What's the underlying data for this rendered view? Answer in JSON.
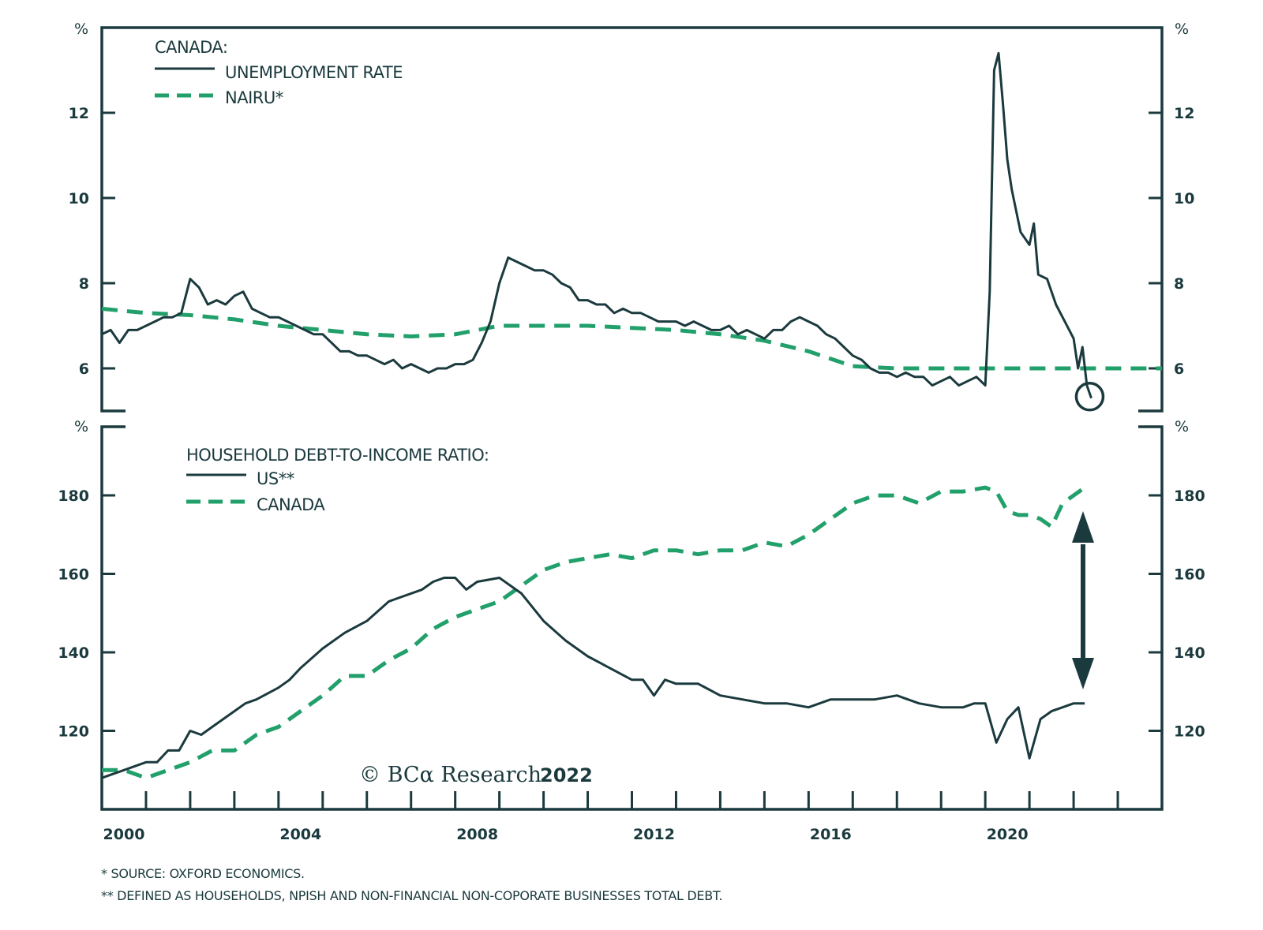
{
  "colors": {
    "dark": "#1b3a3e",
    "green": "#22a06b"
  },
  "footnotes": [
    "*  SOURCE: OXFORD ECONOMICS.",
    "** DEFINED AS HOUSEHOLDS, NPISH AND NON-FINANCIAL NON-COPORATE BUSINESSES TOTAL DEBT."
  ],
  "copyright": {
    "text": "© BCα Research",
    "year": "2022"
  },
  "chart_data": [
    {
      "type": "line",
      "panel": "top",
      "title": "CANADA:",
      "ylabel_left": "%",
      "ylabel_right": "%",
      "ylim": [
        5,
        14
      ],
      "yticks": [
        6,
        8,
        10,
        12
      ],
      "xlim": [
        2000,
        2024
      ],
      "grid": false,
      "legend_position": "top-left",
      "annotation": "circle around latest unemployment reading",
      "series": [
        {
          "name": "UNEMPLOYMENT RATE",
          "style": "solid",
          "x": [
            2000.0,
            2000.2,
            2000.4,
            2000.6,
            2000.8,
            2001.0,
            2001.2,
            2001.4,
            2001.6,
            2001.8,
            2002.0,
            2002.2,
            2002.4,
            2002.6,
            2002.8,
            2003.0,
            2003.2,
            2003.4,
            2003.6,
            2003.8,
            2004.0,
            2004.2,
            2004.4,
            2004.6,
            2004.8,
            2005.0,
            2005.2,
            2005.4,
            2005.6,
            2005.8,
            2006.0,
            2006.2,
            2006.4,
            2006.6,
            2006.8,
            2007.0,
            2007.2,
            2007.4,
            2007.6,
            2007.8,
            2008.0,
            2008.2,
            2008.4,
            2008.6,
            2008.8,
            2009.0,
            2009.2,
            2009.4,
            2009.6,
            2009.8,
            2010.0,
            2010.2,
            2010.4,
            2010.6,
            2010.8,
            2011.0,
            2011.2,
            2011.4,
            2011.6,
            2011.8,
            2012.0,
            2012.2,
            2012.4,
            2012.6,
            2012.8,
            2013.0,
            2013.2,
            2013.4,
            2013.6,
            2013.8,
            2014.0,
            2014.2,
            2014.4,
            2014.6,
            2014.8,
            2015.0,
            2015.2,
            2015.4,
            2015.6,
            2015.8,
            2016.0,
            2016.2,
            2016.4,
            2016.6,
            2016.8,
            2017.0,
            2017.2,
            2017.4,
            2017.6,
            2017.8,
            2018.0,
            2018.2,
            2018.4,
            2018.6,
            2018.8,
            2019.0,
            2019.2,
            2019.4,
            2019.6,
            2019.8,
            2020.0,
            2020.1,
            2020.2,
            2020.3,
            2020.4,
            2020.5,
            2020.6,
            2020.8,
            2021.0,
            2021.1,
            2021.2,
            2021.4,
            2021.6,
            2021.8,
            2022.0,
            2022.1,
            2022.2,
            2022.3,
            2022.4
          ],
          "values": [
            6.8,
            6.9,
            6.6,
            6.9,
            6.9,
            7.0,
            7.1,
            7.2,
            7.2,
            7.3,
            8.1,
            7.9,
            7.5,
            7.6,
            7.5,
            7.7,
            7.8,
            7.4,
            7.3,
            7.2,
            7.2,
            7.1,
            7.0,
            6.9,
            6.8,
            6.8,
            6.6,
            6.4,
            6.4,
            6.3,
            6.3,
            6.2,
            6.1,
            6.2,
            6.0,
            6.1,
            6.0,
            5.9,
            6.0,
            6.0,
            6.1,
            6.1,
            6.2,
            6.6,
            7.1,
            8.0,
            8.6,
            8.5,
            8.4,
            8.3,
            8.3,
            8.2,
            8.0,
            7.9,
            7.6,
            7.6,
            7.5,
            7.5,
            7.3,
            7.4,
            7.3,
            7.3,
            7.2,
            7.1,
            7.1,
            7.1,
            7.0,
            7.1,
            7.0,
            6.9,
            6.9,
            7.0,
            6.8,
            6.9,
            6.8,
            6.7,
            6.9,
            6.9,
            7.1,
            7.2,
            7.1,
            7.0,
            6.8,
            6.7,
            6.5,
            6.3,
            6.2,
            6.0,
            5.9,
            5.9,
            5.8,
            5.9,
            5.8,
            5.8,
            5.6,
            5.7,
            5.8,
            5.6,
            5.7,
            5.8,
            5.6,
            7.8,
            13.0,
            13.4,
            12.2,
            10.9,
            10.2,
            9.2,
            8.9,
            9.4,
            8.2,
            8.1,
            7.5,
            7.1,
            6.7,
            6.0,
            6.5,
            5.6,
            5.3
          ],
          "color": "#1b3a3e"
        },
        {
          "name": "NAIRU*",
          "style": "dashed",
          "x": [
            2000,
            2001,
            2002,
            2003,
            2004,
            2005,
            2006,
            2007,
            2008,
            2009,
            2010,
            2011,
            2012,
            2013,
            2014,
            2015,
            2016,
            2017,
            2018,
            2019,
            2020,
            2021,
            2022,
            2023,
            2024
          ],
          "values": [
            7.4,
            7.3,
            7.25,
            7.15,
            7.0,
            6.9,
            6.8,
            6.75,
            6.8,
            7.0,
            7.0,
            7.0,
            6.95,
            6.9,
            6.8,
            6.65,
            6.4,
            6.05,
            6.0,
            6.0,
            6.0,
            6.0,
            6.0,
            6.0,
            6.0
          ],
          "color": "#22a06b"
        }
      ]
    },
    {
      "type": "line",
      "panel": "bottom",
      "title": "HOUSEHOLD DEBT-TO-INCOME RATIO:",
      "ylabel_left": "%",
      "ylabel_right": "%",
      "ylim": [
        100,
        197.5
      ],
      "yticks": [
        120,
        140,
        160,
        180
      ],
      "xlim": [
        2000,
        2024
      ],
      "xticks": [
        "2000",
        "2004",
        "2008",
        "2012",
        "2016",
        "2020"
      ],
      "grid": false,
      "legend_position": "top-left",
      "annotation": "double-headed arrow marking the gap between Canada and US in 2022",
      "series": [
        {
          "name": "US**",
          "style": "solid",
          "x": [
            2000.0,
            2000.5,
            2001.0,
            2001.25,
            2001.5,
            2001.75,
            2002.0,
            2002.25,
            2002.5,
            2003.0,
            2003.25,
            2003.5,
            2004.0,
            2004.25,
            2004.5,
            2005.0,
            2005.5,
            2006.0,
            2006.5,
            2007.0,
            2007.25,
            2007.5,
            2007.75,
            2008.0,
            2008.25,
            2008.5,
            2009.0,
            2009.5,
            2010.0,
            2010.5,
            2011.0,
            2011.5,
            2012.0,
            2012.25,
            2012.5,
            2012.75,
            2013.0,
            2013.5,
            2014.0,
            2014.5,
            2015.0,
            2015.5,
            2016.0,
            2016.5,
            2017.0,
            2017.5,
            2018.0,
            2018.5,
            2019.0,
            2019.25,
            2019.5,
            2019.75,
            2020.0,
            2020.25,
            2020.5,
            2020.75,
            2021.0,
            2021.25,
            2021.5,
            2021.75,
            2022.0,
            2022.25
          ],
          "values": [
            108,
            110,
            112,
            112,
            115,
            115,
            120,
            119,
            121,
            125,
            127,
            128,
            131,
            133,
            136,
            141,
            145,
            148,
            153,
            155,
            156,
            158,
            159,
            159,
            156,
            158,
            159,
            155,
            148,
            143,
            139,
            136,
            133,
            133,
            129,
            133,
            132,
            132,
            129,
            128,
            127,
            127,
            126,
            128,
            128,
            128,
            129,
            127,
            126,
            126,
            126,
            127,
            127,
            117,
            123,
            126,
            113,
            123,
            125,
            126,
            127,
            127
          ],
          "color": "#1b3a3e"
        },
        {
          "name": "CANADA",
          "style": "dashed",
          "x": [
            2000.0,
            2000.5,
            2001.0,
            2001.5,
            2002.0,
            2002.5,
            2003.0,
            2003.5,
            2004.0,
            2004.5,
            2005.0,
            2005.5,
            2006.0,
            2006.5,
            2007.0,
            2007.5,
            2008.0,
            2008.5,
            2009.0,
            2009.5,
            2010.0,
            2010.5,
            2011.0,
            2011.5,
            2012.0,
            2012.5,
            2013.0,
            2013.5,
            2014.0,
            2014.5,
            2015.0,
            2015.5,
            2016.0,
            2016.5,
            2017.0,
            2017.5,
            2018.0,
            2018.5,
            2019.0,
            2019.5,
            2020.0,
            2020.25,
            2020.5,
            2020.75,
            2021.0,
            2021.25,
            2021.5,
            2021.75,
            2022.0,
            2022.25
          ],
          "values": [
            110,
            110,
            108,
            110,
            112,
            115,
            115,
            119,
            121,
            125,
            129,
            134,
            134,
            138,
            141,
            146,
            149,
            151,
            153,
            157,
            161,
            163,
            164,
            165,
            164,
            166,
            166,
            165,
            166,
            166,
            168,
            167,
            170,
            174,
            178,
            180,
            180,
            178,
            181,
            181,
            182,
            181,
            176,
            175,
            175,
            174,
            172,
            178,
            180,
            182
          ],
          "color": "#22a06b"
        }
      ]
    }
  ],
  "legend": {
    "top": {
      "heading": "CANADA:",
      "items": [
        "UNEMPLOYMENT RATE",
        "NAIRU*"
      ]
    },
    "bottom": {
      "heading": "HOUSEHOLD DEBT-TO-INCOME RATIO:",
      "items": [
        "US**",
        "CANADA"
      ]
    }
  },
  "axis_unit": "%"
}
